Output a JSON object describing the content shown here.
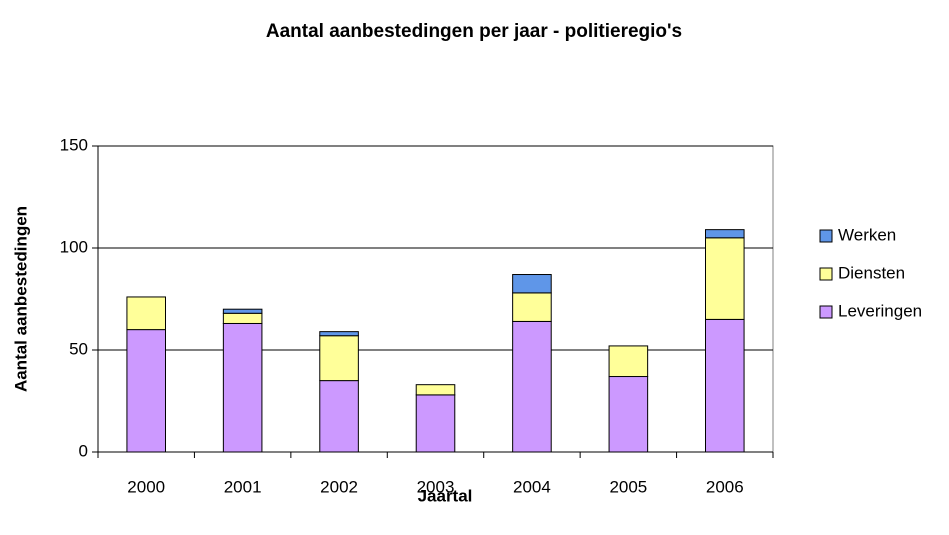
{
  "chart_data": {
    "type": "stacked_bar",
    "title": "Aantal aanbestedingen per jaar - politieregio's",
    "x_label": "Jaartal",
    "y_label": "Aantal aanbestedingen",
    "categories": [
      "2000",
      "2001",
      "2002",
      "2003",
      "2004",
      "2005",
      "2006"
    ],
    "series": [
      {
        "name": "Leveringen",
        "color": "#cc99ff",
        "values": [
          60,
          63,
          35,
          28,
          64,
          37,
          65
        ]
      },
      {
        "name": "Diensten",
        "color": "#ffff99",
        "values": [
          16,
          5,
          22,
          5,
          14,
          15,
          40
        ]
      },
      {
        "name": "Werken",
        "color": "#5f96e8",
        "values": [
          0,
          2,
          2,
          0,
          9,
          0,
          4
        ]
      }
    ],
    "ylim": [
      0,
      150
    ],
    "yticks": [
      0,
      50,
      100,
      150
    ],
    "grid": true,
    "legend": "right"
  }
}
